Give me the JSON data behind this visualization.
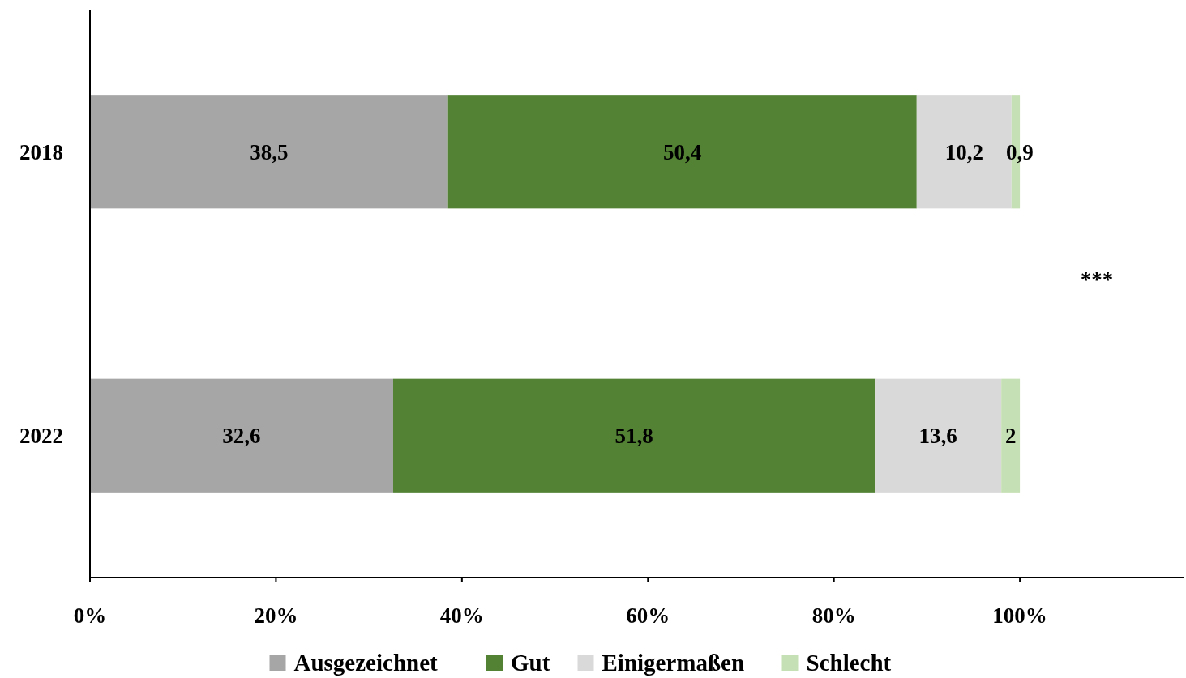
{
  "chart_data": {
    "type": "bar",
    "orientation": "horizontal",
    "stacked": true,
    "categories": [
      "2018",
      "2022"
    ],
    "series": [
      {
        "name": "Ausgezeichnet",
        "color": "#a6a6a6",
        "values": [
          38.5,
          32.6
        ],
        "value_labels": [
          "38,5",
          "32,6"
        ]
      },
      {
        "name": "Gut",
        "color": "#548235",
        "values": [
          50.4,
          51.8
        ],
        "value_labels": [
          "50,4",
          "51,8"
        ]
      },
      {
        "name": "Einigermaßen",
        "color": "#d9d9d9",
        "values": [
          10.2,
          13.6
        ],
        "value_labels": [
          "10,2",
          "13,6"
        ]
      },
      {
        "name": "Schlecht",
        "color": "#c5e0b4",
        "values": [
          0.9,
          2
        ],
        "value_labels": [
          "0,9",
          "2"
        ]
      }
    ],
    "xlim": [
      0,
      117.6
    ],
    "xticks": [
      {
        "value": 0,
        "label": "0%"
      },
      {
        "value": 20,
        "label": "20%"
      },
      {
        "value": 40,
        "label": "40%"
      },
      {
        "value": 60,
        "label": "60%"
      },
      {
        "value": 80,
        "label": "80%"
      },
      {
        "value": 100,
        "label": "100%"
      }
    ],
    "annotations": [
      "***"
    ],
    "legend": "bottom",
    "grid": false
  }
}
